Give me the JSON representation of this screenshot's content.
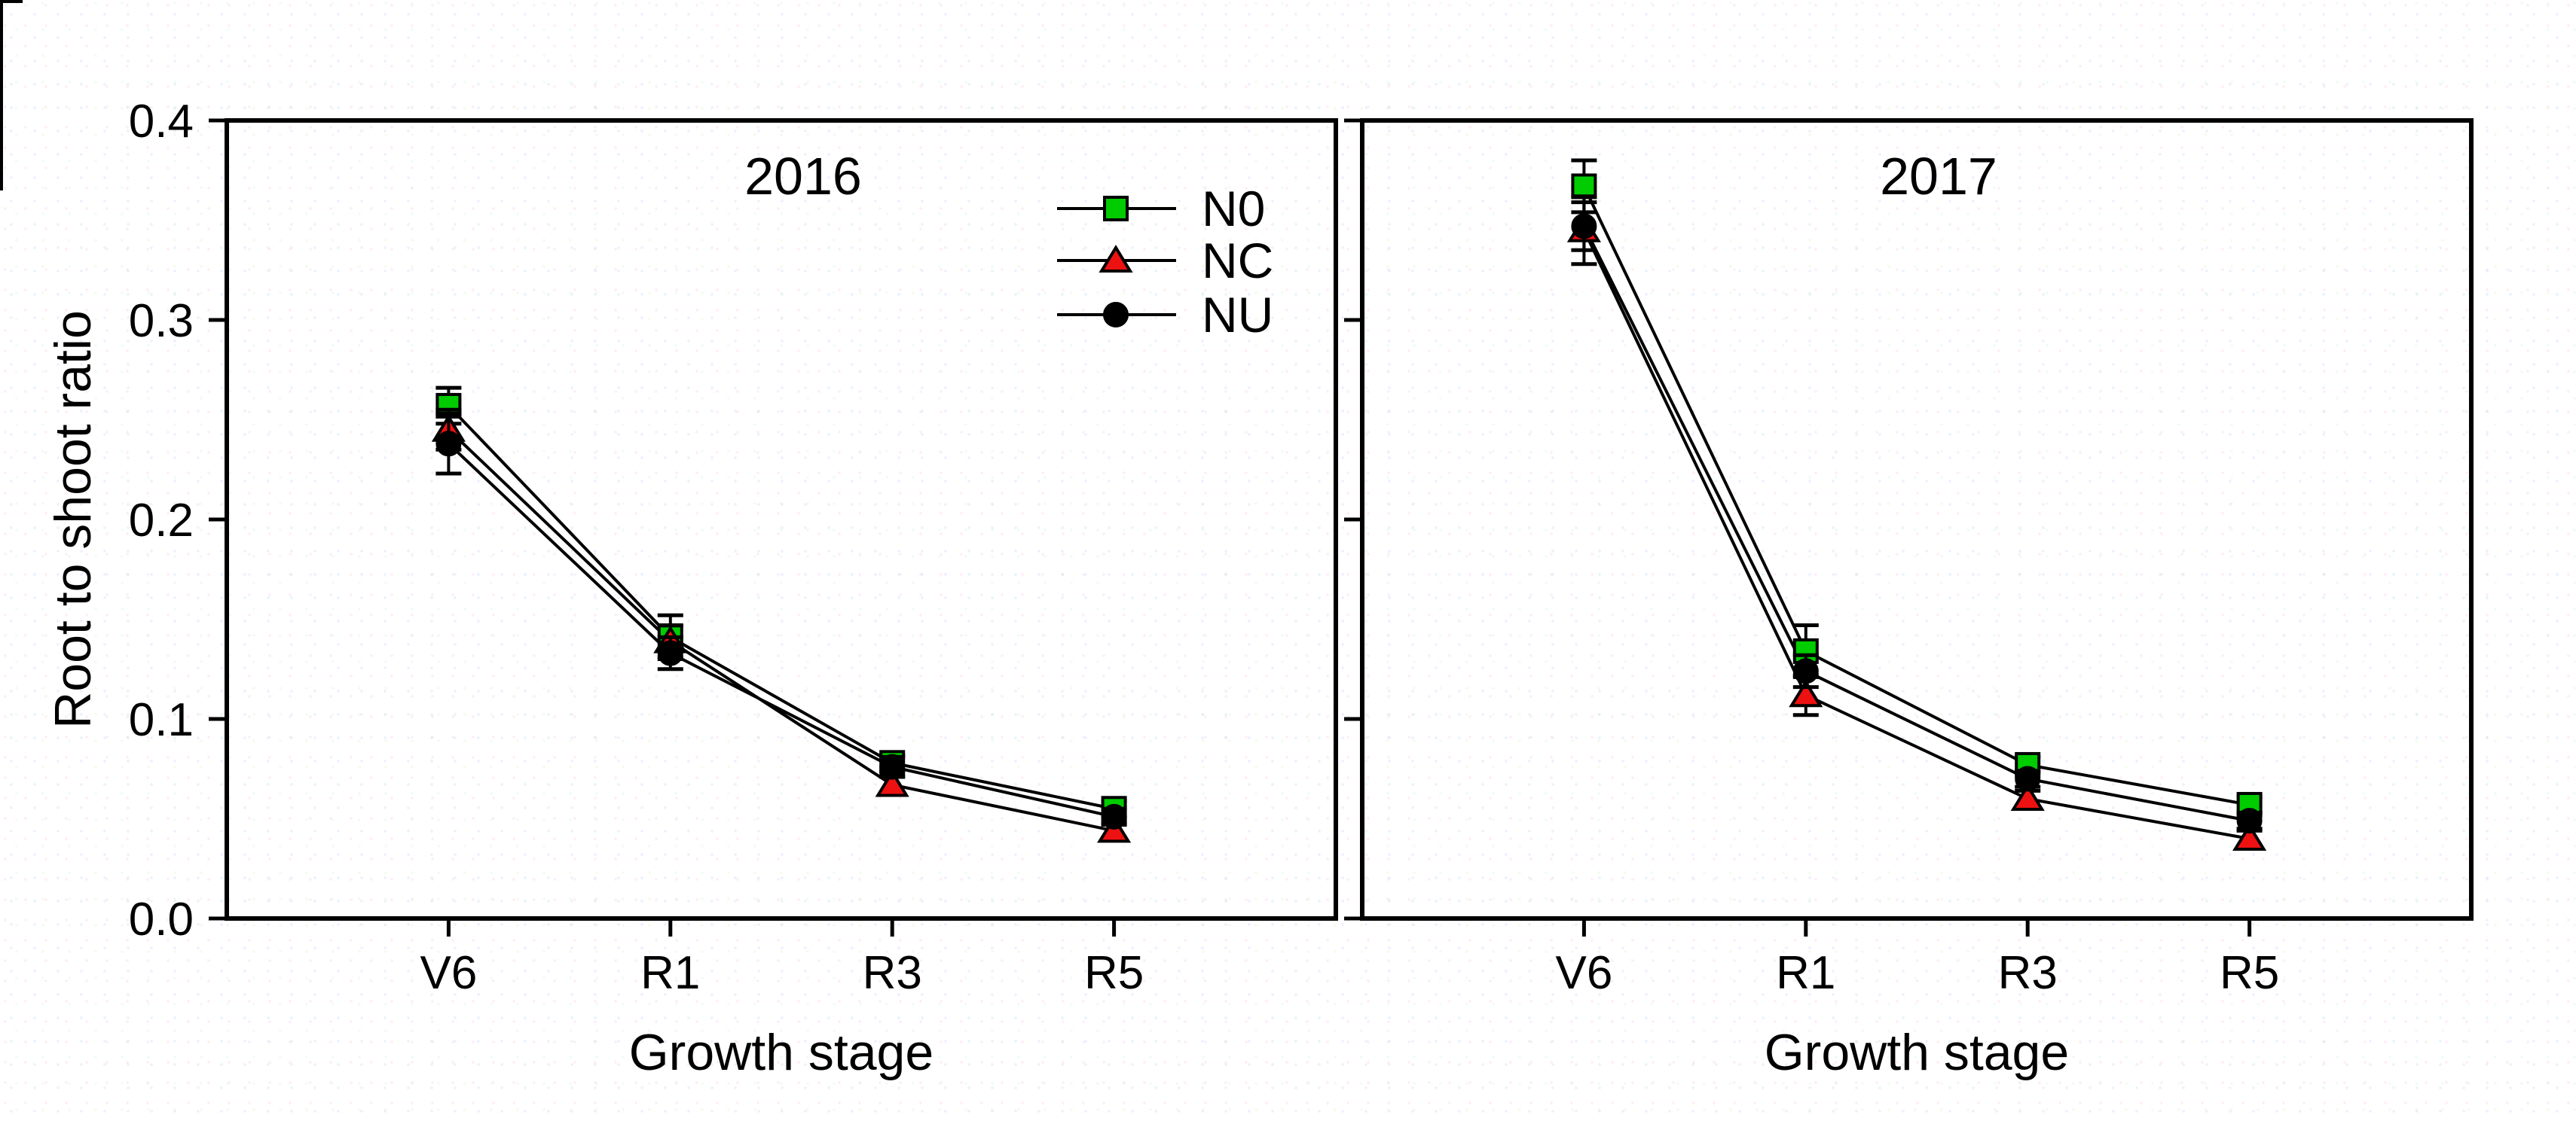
{
  "figure": {
    "background": "#ffffff",
    "axis_color": "#000000",
    "line_color": "#000000"
  },
  "chart_data": [
    {
      "type": "line",
      "panel_label": "2016",
      "categories": [
        "V6",
        "R1",
        "R3",
        "R5"
      ],
      "xlabel": "Growth stage",
      "ylabel": "Root to shoot ratio",
      "ylim": [
        0.0,
        0.4
      ],
      "yticks": [
        0.0,
        0.1,
        0.2,
        0.3,
        0.4
      ],
      "show_y_tick_labels": true,
      "legend": {
        "visible": true,
        "position": "top-right-inside"
      },
      "series": [
        {
          "name": "N0",
          "marker": "square",
          "color": "#00cc00",
          "values": [
            0.257,
            0.141,
            0.078,
            0.055
          ],
          "errors": [
            0.009,
            0.011,
            0.004,
            0.004
          ]
        },
        {
          "name": "NC",
          "marker": "triangle",
          "color": "#ee1111",
          "values": [
            0.245,
            0.139,
            0.067,
            0.044
          ],
          "errors": [
            0.01,
            0.008,
            0.004,
            0.004
          ]
        },
        {
          "name": "NU",
          "marker": "circle",
          "color": "#000000",
          "values": [
            0.238,
            0.133,
            0.076,
            0.051
          ],
          "errors": [
            0.015,
            0.008,
            0.005,
            0.004
          ]
        }
      ]
    },
    {
      "type": "line",
      "panel_label": "2017",
      "categories": [
        "V6",
        "R1",
        "R3",
        "R5"
      ],
      "xlabel": "Growth stage",
      "ylabel": "",
      "ylim": [
        0.0,
        0.4
      ],
      "yticks": [
        0.0,
        0.1,
        0.2,
        0.3,
        0.4
      ],
      "show_y_tick_labels": false,
      "legend": {
        "visible": false,
        "position": ""
      },
      "series": [
        {
          "name": "N0",
          "marker": "square",
          "color": "#00cc00",
          "values": [
            0.367,
            0.134,
            0.077,
            0.057
          ],
          "errors": [
            0.013,
            0.013,
            0.004,
            0.004
          ]
        },
        {
          "name": "NC",
          "marker": "triangle",
          "color": "#ee1111",
          "values": [
            0.345,
            0.112,
            0.06,
            0.04
          ],
          "errors": [
            0.017,
            0.01,
            0.004,
            0.004
          ]
        },
        {
          "name": "NU",
          "marker": "circle",
          "color": "#000000",
          "values": [
            0.347,
            0.124,
            0.07,
            0.049
          ],
          "errors": [
            0.012,
            0.008,
            0.004,
            0.004
          ]
        }
      ]
    }
  ]
}
